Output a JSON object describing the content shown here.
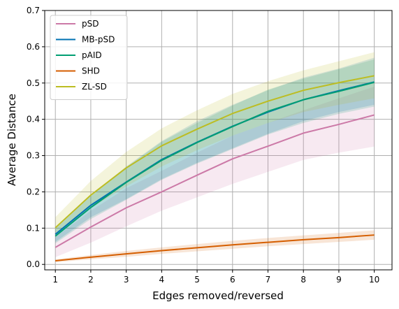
{
  "chart_data": {
    "type": "line",
    "xlabel": "Edges removed/reversed",
    "ylabel": "Average Distance",
    "x": [
      1,
      2,
      3,
      4,
      5,
      6,
      7,
      8,
      9,
      10
    ],
    "xticks": [
      "1",
      "2",
      "3",
      "4",
      "5",
      "6",
      "7",
      "8",
      "9",
      "10"
    ],
    "xlim": [
      0.7,
      10.5
    ],
    "ylim": [
      -0.015,
      0.7
    ],
    "yticks": [
      "0.0",
      "0.1",
      "0.2",
      "0.3",
      "0.4",
      "0.5",
      "0.6",
      "0.7"
    ],
    "grid": true,
    "legend_position": "top-left",
    "series": [
      {
        "name": "pSD",
        "color": "#cc79a7",
        "values": [
          0.047,
          0.103,
          0.156,
          0.2,
          0.246,
          0.291,
          0.326,
          0.362,
          0.386,
          0.412
        ],
        "lower": [
          0.02,
          0.06,
          0.105,
          0.148,
          0.185,
          0.222,
          0.255,
          0.288,
          0.308,
          0.325
        ],
        "upper": [
          0.075,
          0.148,
          0.21,
          0.258,
          0.308,
          0.355,
          0.39,
          0.425,
          0.458,
          0.49
        ]
      },
      {
        "name": "MB-pSD",
        "color": "#0072b2",
        "values": [
          0.083,
          0.163,
          0.227,
          0.289,
          0.337,
          0.381,
          0.42,
          0.454,
          0.479,
          0.503
        ],
        "lower": [
          0.062,
          0.13,
          0.18,
          0.235,
          0.28,
          0.32,
          0.36,
          0.395,
          0.42,
          0.44
        ],
        "upper": [
          0.1,
          0.19,
          0.27,
          0.34,
          0.395,
          0.44,
          0.48,
          0.515,
          0.54,
          0.57
        ]
      },
      {
        "name": "pAID",
        "color": "#009e73",
        "values": [
          0.078,
          0.157,
          0.226,
          0.287,
          0.336,
          0.38,
          0.422,
          0.454,
          0.477,
          0.502
        ],
        "lower": [
          0.058,
          0.125,
          0.178,
          0.233,
          0.278,
          0.318,
          0.358,
          0.39,
          0.415,
          0.435
        ],
        "upper": [
          0.098,
          0.188,
          0.268,
          0.338,
          0.39,
          0.438,
          0.482,
          0.512,
          0.538,
          0.565
        ]
      },
      {
        "name": "SHD",
        "color": "#d55e00",
        "values": [
          0.01,
          0.02,
          0.029,
          0.038,
          0.046,
          0.054,
          0.061,
          0.068,
          0.074,
          0.081
        ],
        "lower": [
          0.006,
          0.014,
          0.021,
          0.029,
          0.036,
          0.043,
          0.05,
          0.056,
          0.062,
          0.068
        ],
        "upper": [
          0.014,
          0.026,
          0.037,
          0.047,
          0.056,
          0.065,
          0.073,
          0.08,
          0.087,
          0.094
        ]
      },
      {
        "name": "ZL-SD",
        "color": "#bcbd22",
        "values": [
          0.101,
          0.191,
          0.266,
          0.327,
          0.373,
          0.416,
          0.45,
          0.48,
          0.501,
          0.52
        ],
        "lower": [
          0.075,
          0.155,
          0.215,
          0.27,
          0.315,
          0.355,
          0.39,
          0.42,
          0.44,
          0.458
        ],
        "upper": [
          0.13,
          0.23,
          0.31,
          0.375,
          0.425,
          0.47,
          0.505,
          0.535,
          0.56,
          0.585
        ]
      }
    ]
  }
}
